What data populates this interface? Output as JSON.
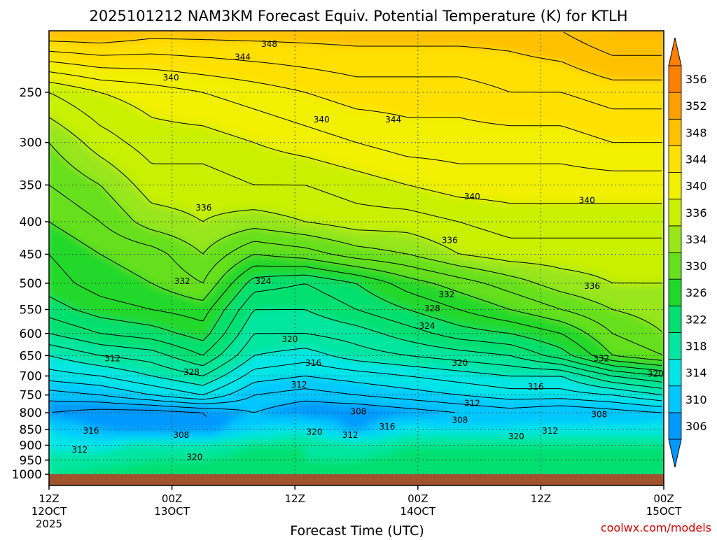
{
  "chart_data": {
    "type": "heatmap",
    "title": "2025101212 NAM3KM Forecast Equiv. Potential Temperature (K) for KTLH",
    "xlabel": "Forecast Time (UTC)",
    "ylabel": "",
    "y_scale": "log",
    "ylim": [
      1000,
      200
    ],
    "y_ticks": [
      250,
      300,
      350,
      400,
      450,
      500,
      550,
      600,
      650,
      700,
      750,
      800,
      850,
      900,
      950,
      1000
    ],
    "x_range_hours": [
      0,
      60
    ],
    "x_ticks": [
      {
        "hour": 0,
        "label": "12Z",
        "date": "12OCT",
        "year": "2025"
      },
      {
        "hour": 12,
        "label": "00Z",
        "date": "13OCT",
        "year": ""
      },
      {
        "hour": 24,
        "label": "12Z",
        "date": "",
        "year": ""
      },
      {
        "hour": 36,
        "label": "00Z",
        "date": "14OCT",
        "year": ""
      },
      {
        "hour": 48,
        "label": "12Z",
        "date": "",
        "year": ""
      },
      {
        "hour": 60,
        "label": "00Z",
        "date": "15OCT",
        "year": ""
      }
    ],
    "grid": true,
    "colorbar": {
      "position": "right",
      "levels": [
        306,
        310,
        314,
        318,
        322,
        326,
        330,
        334,
        336,
        340,
        344,
        348,
        352,
        356
      ],
      "colors": [
        "#0099ff",
        "#00c8ff",
        "#00e6e6",
        "#00e6a0",
        "#00e070",
        "#20d82a",
        "#66e01e",
        "#99e61a",
        "#c8f000",
        "#f0f000",
        "#ffe000",
        "#ffc000",
        "#ffa000",
        "#ff8000"
      ]
    },
    "field": {
      "units": "K",
      "rows": [
        {
          "p": 200,
          "values": [
            350,
            350,
            349,
            349,
            349,
            349,
            349,
            349,
            349,
            349,
            350,
            352,
            352
          ]
        },
        {
          "p": 250,
          "values": [
            338,
            340,
            341,
            342,
            343,
            344,
            345,
            345,
            345,
            346,
            346,
            347,
            347
          ]
        },
        {
          "p": 300,
          "values": [
            334,
            337,
            339,
            339,
            340,
            341,
            342,
            343,
            343,
            343,
            343,
            344,
            344
          ]
        },
        {
          "p": 350,
          "values": [
            332,
            334,
            337,
            337,
            338,
            338,
            339,
            340,
            341,
            341,
            341,
            341,
            341
          ]
        },
        {
          "p": 400,
          "values": [
            330,
            332,
            335,
            336,
            335,
            336,
            337,
            337,
            338,
            339,
            339,
            339,
            339
          ]
        },
        {
          "p": 450,
          "values": [
            328,
            330,
            331,
            334,
            330,
            331,
            333,
            334,
            336,
            337,
            337,
            337,
            337
          ]
        },
        {
          "p": 500,
          "values": [
            327,
            329,
            330,
            332,
            325,
            324,
            326,
            329,
            331,
            333,
            335,
            336,
            336
          ]
        },
        {
          "p": 550,
          "values": [
            325,
            327,
            328,
            329,
            322,
            322,
            324,
            326,
            328,
            330,
            332,
            334,
            335
          ]
        },
        {
          "p": 600,
          "values": [
            322,
            324,
            325,
            327,
            320,
            320,
            321,
            323,
            325,
            326,
            328,
            332,
            334
          ]
        },
        {
          "p": 650,
          "values": [
            318,
            320,
            321,
            324,
            318,
            317,
            319,
            320,
            321,
            322,
            325,
            330,
            332
          ]
        },
        {
          "p": 700,
          "values": [
            315,
            316,
            318,
            320,
            315,
            314,
            315,
            316,
            317,
            318,
            318,
            322,
            324
          ]
        },
        {
          "p": 750,
          "values": [
            311,
            312,
            314,
            316,
            312,
            311,
            312,
            313,
            314,
            315,
            315,
            316,
            318
          ]
        },
        {
          "p": 800,
          "values": [
            308,
            307,
            307,
            308,
            310,
            308,
            308,
            309,
            310,
            311,
            310,
            311,
            312
          ]
        },
        {
          "p": 850,
          "values": [
            314,
            310,
            307,
            307,
            314,
            316,
            309,
            316,
            315,
            315,
            316,
            315,
            316
          ]
        },
        {
          "p": 900,
          "values": [
            316,
            316,
            320,
            320,
            322,
            322,
            320,
            322,
            322,
            322,
            322,
            322,
            322
          ]
        },
        {
          "p": 950,
          "values": [
            320,
            320,
            322,
            322,
            323,
            322,
            322,
            323,
            323,
            323,
            323,
            323,
            324
          ]
        },
        {
          "p": 1000,
          "values": [
            322,
            323,
            324,
            324,
            324,
            324,
            324,
            324,
            324,
            324,
            324,
            324,
            324
          ]
        }
      ],
      "hours": [
        0,
        5,
        10,
        15,
        20,
        25,
        30,
        35,
        40,
        45,
        50,
        55,
        60
      ]
    },
    "contour_labels": [
      {
        "text": "348",
        "hour": 21.5,
        "p": 210
      },
      {
        "text": "344",
        "hour": 18.9,
        "p": 220
      },
      {
        "text": "340",
        "hour": 11.9,
        "p": 237
      },
      {
        "text": "340",
        "hour": 26.6,
        "p": 276
      },
      {
        "text": "344",
        "hour": 33.6,
        "p": 276
      },
      {
        "text": "340",
        "hour": 41.3,
        "p": 365
      },
      {
        "text": "340",
        "hour": 52.5,
        "p": 370
      },
      {
        "text": "336",
        "hour": 15.1,
        "p": 380
      },
      {
        "text": "336",
        "hour": 39.1,
        "p": 428
      },
      {
        "text": "336",
        "hour": 53.0,
        "p": 505
      },
      {
        "text": "332",
        "hour": 13.0,
        "p": 496
      },
      {
        "text": "324",
        "hour": 20.9,
        "p": 496
      },
      {
        "text": "332",
        "hour": 38.8,
        "p": 521
      },
      {
        "text": "328",
        "hour": 37.4,
        "p": 548
      },
      {
        "text": "324",
        "hour": 36.9,
        "p": 584
      },
      {
        "text": "320",
        "hour": 23.5,
        "p": 613
      },
      {
        "text": "332",
        "hour": 53.9,
        "p": 657
      },
      {
        "text": "312",
        "hour": 6.2,
        "p": 657
      },
      {
        "text": "316",
        "hour": 25.8,
        "p": 668
      },
      {
        "text": "320",
        "hour": 40.1,
        "p": 668
      },
      {
        "text": "328",
        "hour": 13.9,
        "p": 690
      },
      {
        "text": "320",
        "hour": 59.2,
        "p": 695
      },
      {
        "text": "312",
        "hour": 24.4,
        "p": 723
      },
      {
        "text": "316",
        "hour": 47.5,
        "p": 728
      },
      {
        "text": "312",
        "hour": 41.3,
        "p": 773
      },
      {
        "text": "308",
        "hour": 30.2,
        "p": 797
      },
      {
        "text": "308",
        "hour": 53.7,
        "p": 805
      },
      {
        "text": "308",
        "hour": 40.1,
        "p": 821
      },
      {
        "text": "316",
        "hour": 33.0,
        "p": 841
      },
      {
        "text": "312",
        "hour": 48.9,
        "p": 854
      },
      {
        "text": "316",
        "hour": 4.1,
        "p": 854
      },
      {
        "text": "320",
        "hour": 25.9,
        "p": 858
      },
      {
        "text": "308",
        "hour": 12.9,
        "p": 868
      },
      {
        "text": "312",
        "hour": 29.4,
        "p": 868
      },
      {
        "text": "320",
        "hour": 45.6,
        "p": 872
      },
      {
        "text": "312",
        "hour": 3.0,
        "p": 915
      },
      {
        "text": "320",
        "hour": 14.2,
        "p": 940
      }
    ]
  },
  "credit": "coolwx.com/models"
}
